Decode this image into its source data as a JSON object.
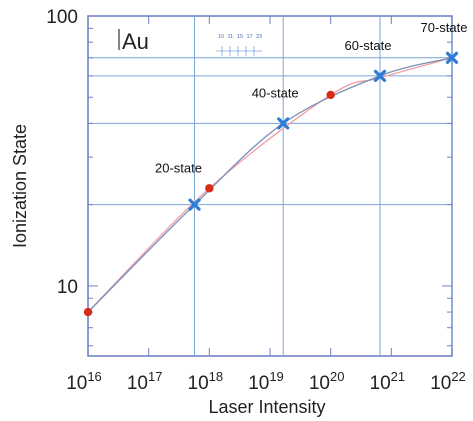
{
  "chart_data": {
    "type": "scatter",
    "title": "",
    "panel_label": "Au",
    "xlabel": "Laser Intensity",
    "ylabel": "Ionization State",
    "x_scale": "log",
    "y_scale": "log",
    "xlim": [
      1e+16,
      1e+22
    ],
    "ylim": [
      5.5,
      100
    ],
    "x_tick_labels": [
      {
        "value": 1e+16,
        "base": "10",
        "exp": "16"
      },
      {
        "value": 1e+17,
        "base": "10",
        "exp": "17"
      },
      {
        "value": 1e+18,
        "base": "10",
        "exp": "18"
      },
      {
        "value": 1e+19,
        "base": "10",
        "exp": "19"
      },
      {
        "value": 1e+20,
        "base": "10",
        "exp": "20"
      },
      {
        "value": 1e+21,
        "base": "10",
        "exp": "21"
      },
      {
        "value": 1e+22,
        "base": "10",
        "exp": "22"
      }
    ],
    "y_tick_labels": [
      {
        "value": 10,
        "label": "10"
      },
      {
        "value": 100,
        "label": "100"
      }
    ],
    "reference_lines": {
      "vertical": [
        5.7e+17,
        1.65e+19,
        6.5e+20,
        1e+22
      ],
      "horizontal": [
        20,
        40,
        60,
        70
      ]
    },
    "inset_labels": [
      "10",
      "11",
      "15",
      "17",
      "23"
    ],
    "series": [
      {
        "marker": "x",
        "color": "#2e7cd6",
        "line_color": "#7a8fb8",
        "points": [
          {
            "x": 5.7e+17,
            "y": 20,
            "label": "20-state"
          },
          {
            "x": 1.65e+19,
            "y": 40,
            "label": "40-state"
          },
          {
            "x": 6.5e+20,
            "y": 60,
            "label": "60-state"
          },
          {
            "x": 1e+22,
            "y": 70,
            "label": "70-state"
          }
        ]
      },
      {
        "marker": "dot",
        "color": "#d62c1a",
        "line_color": "#f0a0a0",
        "points": [
          {
            "x": 1e+16,
            "y": 8
          },
          {
            "x": 1e+18,
            "y": 23
          },
          {
            "x": 1e+20,
            "y": 51
          }
        ]
      }
    ]
  }
}
